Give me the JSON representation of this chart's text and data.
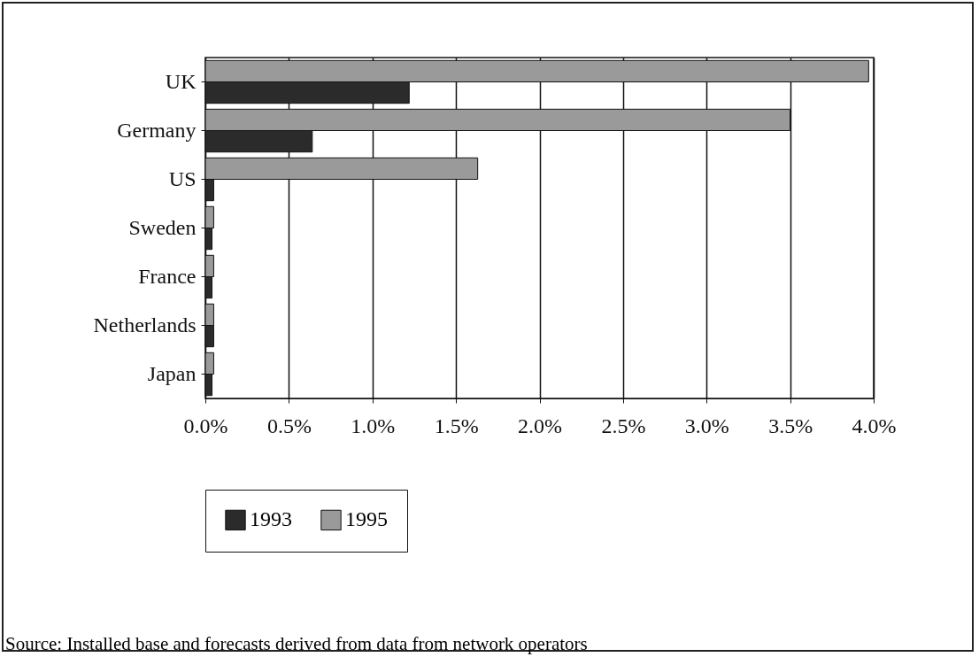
{
  "chart_data": {
    "type": "bar",
    "orientation": "horizontal",
    "categories": [
      "UK",
      "Germany",
      "US",
      "Sweden",
      "France",
      "Netherlands",
      "Japan"
    ],
    "series": [
      {
        "name": "1993",
        "color": "#2b2b2b",
        "values": [
          1.22,
          0.64,
          0.05,
          0.04,
          0.04,
          0.05,
          0.04
        ]
      },
      {
        "name": "1995",
        "color": "#9a9a9a",
        "values": [
          3.97,
          3.5,
          1.63,
          0.05,
          0.05,
          0.05,
          0.05
        ]
      }
    ],
    "xlim": [
      0,
      4
    ],
    "xticks": [
      {
        "value": 0,
        "label": "0.0%"
      },
      {
        "value": 0.5,
        "label": "0.5%"
      },
      {
        "value": 1,
        "label": "1.0%"
      },
      {
        "value": 1.5,
        "label": "1.5%"
      },
      {
        "value": 2,
        "label": "2.0%"
      },
      {
        "value": 2.5,
        "label": "2.5%"
      },
      {
        "value": 3,
        "label": "3.0%"
      },
      {
        "value": 3.5,
        "label": "3.5%"
      },
      {
        "value": 4,
        "label": "4.0%"
      }
    ],
    "grid": "x",
    "legend": "bottom",
    "annotations": [
      "Source: Installed base and forecasts derived from data from network operators"
    ]
  }
}
